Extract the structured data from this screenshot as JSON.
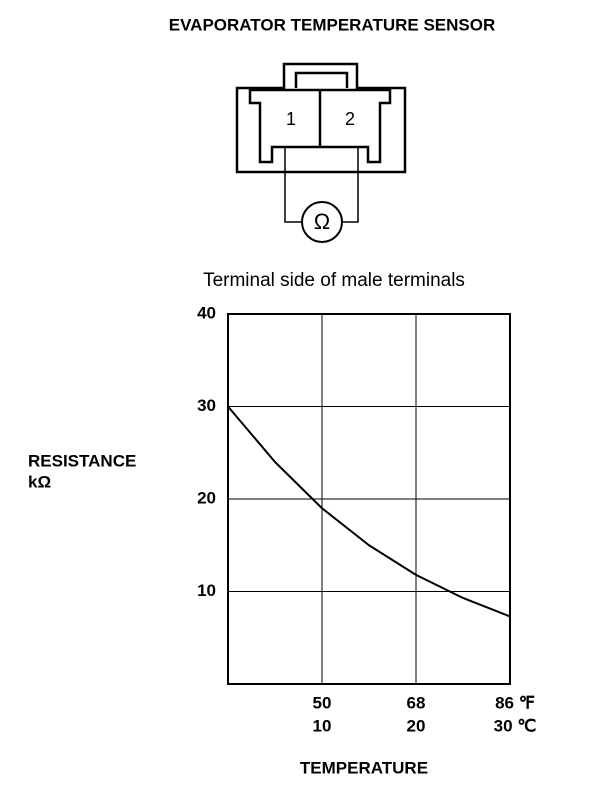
{
  "title": "EVAPORATOR TEMPERATURE SENSOR",
  "diagram": {
    "terminals": [
      "1",
      "2"
    ],
    "meter": "Ω",
    "caption": "Terminal side of male terminals"
  },
  "chart_data": {
    "type": "line",
    "y_label": "RESISTANCE",
    "y_unit": "kΩ",
    "x_label": "TEMPERATURE",
    "x": [
      0,
      5,
      10,
      15,
      20,
      25,
      30
    ],
    "series": [
      {
        "name": "Resistance",
        "color": "#000000",
        "values": [
          30,
          24,
          19,
          15,
          11.8,
          9.3,
          7.3
        ]
      }
    ],
    "xlim": [
      0,
      30
    ],
    "ylim": [
      0,
      40
    ],
    "xticks": [
      10,
      20,
      {
        "value": 30,
        "label": "30 ℃"
      }
    ],
    "x2ticks": [
      {
        "value": 10,
        "label": "50"
      },
      {
        "value": 20,
        "label": "68"
      },
      {
        "value": 30,
        "label": "86 ℉"
      }
    ],
    "yticks": [
      10,
      20,
      30,
      40
    ],
    "grid": true
  }
}
